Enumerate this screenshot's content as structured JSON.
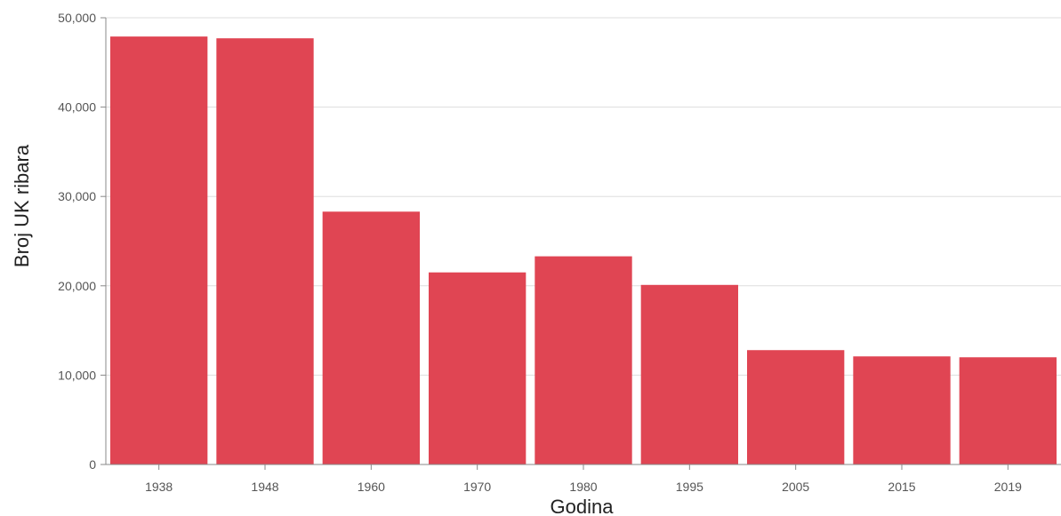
{
  "chart_data": {
    "type": "bar",
    "categories": [
      "1938",
      "1948",
      "1960",
      "1970",
      "1980",
      "1995",
      "2005",
      "2015",
      "2019"
    ],
    "values": [
      47900,
      47700,
      28300,
      21500,
      23300,
      20100,
      12800,
      12100,
      12000
    ],
    "xlabel": "Godina",
    "ylabel": "Broj UK ribara",
    "ylim": [
      0,
      50000
    ],
    "yticks": [
      0,
      10000,
      20000,
      30000,
      40000,
      50000
    ],
    "ytick_labels": [
      "0",
      "10,000",
      "20,000",
      "30,000",
      "40,000",
      "50,000"
    ],
    "grid": true,
    "legend": "none",
    "bar_color": "#e04553"
  }
}
